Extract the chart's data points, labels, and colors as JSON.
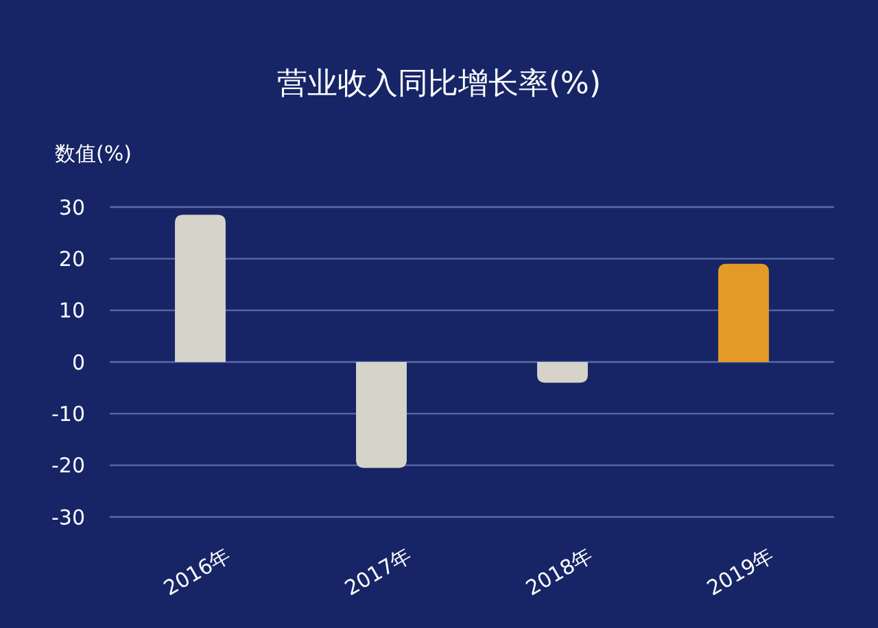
{
  "chart_data": {
    "type": "bar",
    "title": "营业收入同比增长率(%)",
    "ylabel": "数值(%)",
    "categories": [
      "2016年",
      "2017年",
      "2018年",
      "2019年"
    ],
    "values": [
      28.5,
      -20.5,
      -4,
      19
    ],
    "colors": [
      "#d6d3ca",
      "#d6d3ca",
      "#d6d3ca",
      "#e39a26"
    ],
    "ylim": [
      -30,
      30
    ],
    "yticks": [
      -30,
      -20,
      -10,
      0,
      10,
      20,
      30
    ],
    "grid": "y"
  }
}
